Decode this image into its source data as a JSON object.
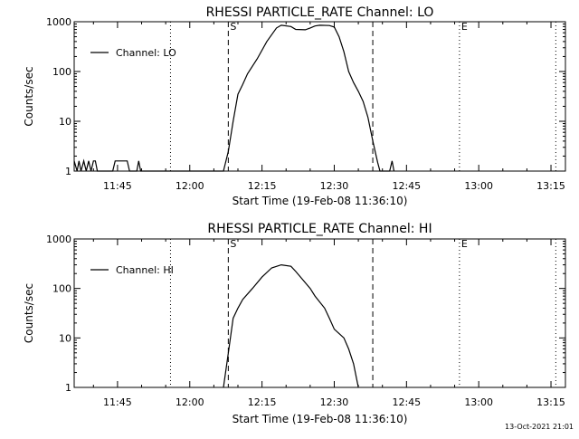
{
  "footer": {
    "timestamp": "13-Oct-2021 21:01"
  },
  "chart_data": [
    {
      "type": "line",
      "title": "RHESSI PARTICLE_RATE Channel: LO",
      "xlabel": "Start Time (19-Feb-08 11:36:10)",
      "ylabel": "Counts/sec",
      "yscale": "log",
      "ylim": [
        1,
        1000
      ],
      "xlim": [
        "11:36",
        "13:18"
      ],
      "x_tick_labels": [
        "11:45",
        "12:00",
        "12:15",
        "12:30",
        "12:45",
        "13:00",
        "13:15"
      ],
      "x_tick_values": [
        "11:45",
        "12:00",
        "12:15",
        "12:30",
        "12:45",
        "13:00",
        "13:15"
      ],
      "y_tick_labels": [
        "1",
        "10",
        "100",
        "1000"
      ],
      "y_tick_values": [
        1,
        10,
        100,
        1000
      ],
      "legend": {
        "position": "top-left",
        "entries": [
          "Channel: LO"
        ]
      },
      "markers": [
        {
          "label": "S",
          "time": "12:08",
          "style": "dashed"
        },
        {
          "label": "",
          "time": "12:38",
          "style": "dashed"
        },
        {
          "label": "",
          "time": "11:56",
          "style": "dotted"
        },
        {
          "label": "E",
          "time": "12:56",
          "style": "dotted"
        },
        {
          "label": "",
          "time": "13:16",
          "style": "dotted"
        }
      ],
      "series": [
        {
          "name": "Channel: LO",
          "points": [
            [
              "11:36",
              1.6
            ],
            [
              "11:36.6",
              1
            ],
            [
              "11:37",
              1.6
            ],
            [
              "11:37.4",
              1
            ],
            [
              "11:38",
              1.6
            ],
            [
              "11:38.5",
              1
            ],
            [
              "11:39",
              1.6
            ],
            [
              "11:39.5",
              1
            ],
            [
              "11:40",
              1.6
            ],
            [
              "11:40.4",
              1.6
            ],
            [
              "11:40.8",
              1
            ],
            [
              "11:44",
              1
            ],
            [
              "11:44.5",
              1.6
            ],
            [
              "11:47",
              1.6
            ],
            [
              "11:47.5",
              1
            ],
            [
              "11:49",
              1
            ],
            [
              "11:49.4",
              1.6
            ],
            [
              "11:49.8",
              1
            ],
            [
              "12:07",
              1
            ],
            [
              "12:08",
              2.5
            ],
            [
              "12:09",
              10
            ],
            [
              "12:10",
              35
            ],
            [
              "12:11",
              55
            ],
            [
              "12:12",
              90
            ],
            [
              "12:14",
              180
            ],
            [
              "12:16",
              400
            ],
            [
              "12:18",
              750
            ],
            [
              "12:19",
              850
            ],
            [
              "12:21",
              800
            ],
            [
              "12:22",
              700
            ],
            [
              "12:24",
              690
            ],
            [
              "12:25",
              750
            ],
            [
              "12:26",
              820
            ],
            [
              "12:27",
              850
            ],
            [
              "12:29",
              840
            ],
            [
              "12:30",
              780
            ],
            [
              "12:31",
              500
            ],
            [
              "12:32",
              250
            ],
            [
              "12:33",
              100
            ],
            [
              "12:34",
              60
            ],
            [
              "12:35",
              40
            ],
            [
              "12:36",
              25
            ],
            [
              "12:37",
              12
            ],
            [
              "12:38",
              4
            ],
            [
              "12:39",
              1.5
            ],
            [
              "12:39.5",
              1
            ],
            [
              "12:41.5",
              1
            ],
            [
              "12:42",
              1.6
            ],
            [
              "12:42.4",
              1
            ]
          ]
        }
      ]
    },
    {
      "type": "line",
      "title": "RHESSI PARTICLE_RATE Channel: HI",
      "xlabel": "Start Time (19-Feb-08 11:36:10)",
      "ylabel": "Counts/sec",
      "yscale": "log",
      "ylim": [
        1,
        1000
      ],
      "xlim": [
        "11:36",
        "13:18"
      ],
      "x_tick_labels": [
        "11:45",
        "12:00",
        "12:15",
        "12:30",
        "12:45",
        "13:00",
        "13:15"
      ],
      "x_tick_values": [
        "11:45",
        "12:00",
        "12:15",
        "12:30",
        "12:45",
        "13:00",
        "13:15"
      ],
      "y_tick_labels": [
        "1",
        "10",
        "100",
        "1000"
      ],
      "y_tick_values": [
        1,
        10,
        100,
        1000
      ],
      "legend": {
        "position": "top-left",
        "entries": [
          "Channel: HI"
        ]
      },
      "markers": [
        {
          "label": "S",
          "time": "12:08",
          "style": "dashed"
        },
        {
          "label": "",
          "time": "12:38",
          "style": "dashed"
        },
        {
          "label": "",
          "time": "11:56",
          "style": "dotted"
        },
        {
          "label": "E",
          "time": "12:56",
          "style": "dotted"
        },
        {
          "label": "",
          "time": "13:16",
          "style": "dotted"
        }
      ],
      "series": [
        {
          "name": "Channel: HI",
          "points": [
            [
              "12:07",
              1
            ],
            [
              "12:08",
              5
            ],
            [
              "12:09",
              25
            ],
            [
              "12:10",
              40
            ],
            [
              "12:11",
              60
            ],
            [
              "12:13",
              100
            ],
            [
              "12:15",
              170
            ],
            [
              "12:17",
              260
            ],
            [
              "12:19",
              300
            ],
            [
              "12:21",
              280
            ],
            [
              "12:22",
              220
            ],
            [
              "12:23",
              170
            ],
            [
              "12:25",
              100
            ],
            [
              "12:26",
              70
            ],
            [
              "12:28",
              40
            ],
            [
              "12:29",
              25
            ],
            [
              "12:30",
              15
            ],
            [
              "12:32",
              10
            ],
            [
              "12:33",
              6
            ],
            [
              "12:34",
              3
            ],
            [
              "12:35",
              1
            ]
          ]
        }
      ]
    }
  ]
}
